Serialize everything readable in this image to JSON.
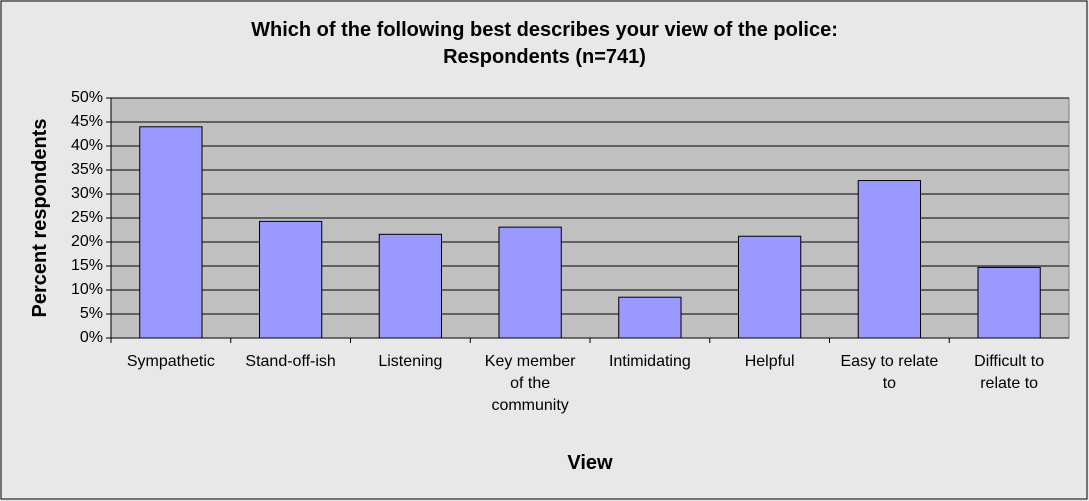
{
  "chart_data": {
    "type": "bar",
    "title": [
      "Which of the following best describes your view of the police:",
      "Respondents (n=741)"
    ],
    "x_label": "View",
    "y_label": "Percent respondents",
    "categories": [
      "Sympathetic",
      "Stand-off-ish",
      "Listening",
      "Key member of the community",
      "Intimidating",
      "Helpful",
      "Easy to relate to",
      "Difficult to relate to"
    ],
    "values": [
      44,
      24.3,
      21.6,
      23.1,
      8.5,
      21.2,
      32.8,
      14.7
    ],
    "color": "#9999ff",
    "ylim": [
      0,
      50
    ],
    "yticks": [
      {
        "value": 0,
        "label": "0%"
      },
      {
        "value": 5,
        "label": "5%"
      },
      {
        "value": 10,
        "label": "10%"
      },
      {
        "value": 15,
        "label": "15%"
      },
      {
        "value": 20,
        "label": "20%"
      },
      {
        "value": 25,
        "label": "25%"
      },
      {
        "value": 30,
        "label": "30%"
      },
      {
        "value": 35,
        "label": "35%"
      },
      {
        "value": 40,
        "label": "40%"
      },
      {
        "value": 45,
        "label": "45%"
      },
      {
        "value": 50,
        "label": "50%"
      }
    ],
    "grid": true
  }
}
